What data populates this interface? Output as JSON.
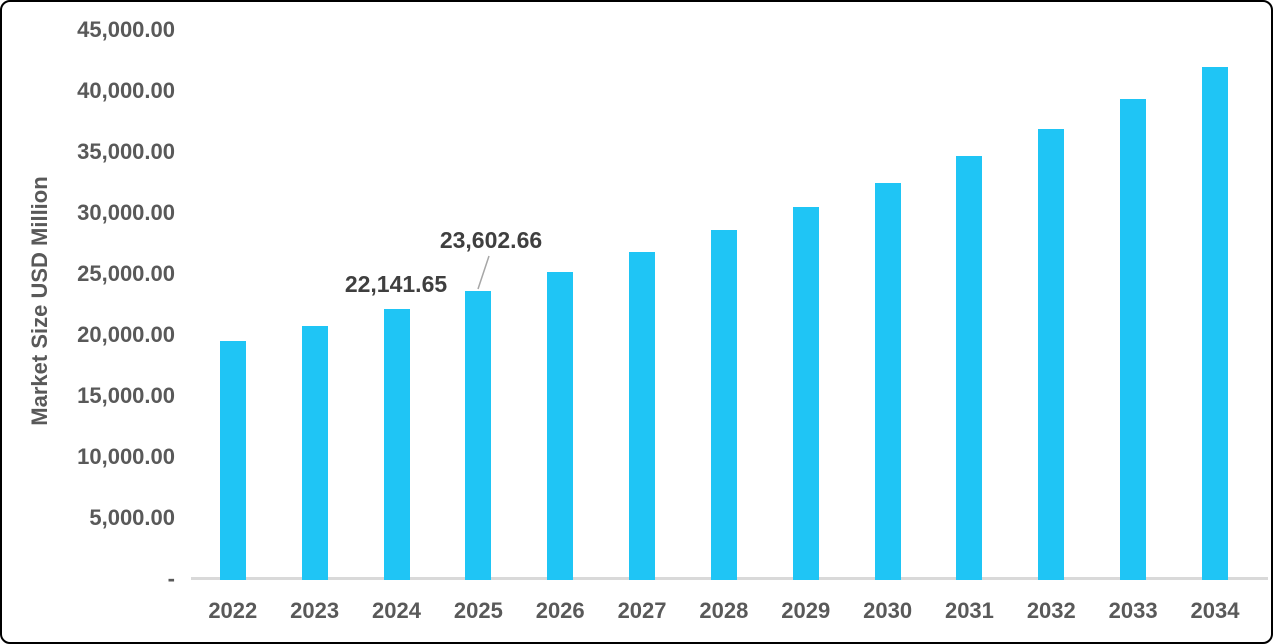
{
  "chart_data": {
    "type": "bar",
    "title": "",
    "xlabel": "",
    "ylabel": "Market Size USD Million",
    "categories": [
      "2022",
      "2023",
      "2024",
      "2025",
      "2026",
      "2027",
      "2028",
      "2029",
      "2030",
      "2031",
      "2032",
      "2033",
      "2034"
    ],
    "values": [
      19485,
      20771,
      22141.65,
      23602.66,
      25160,
      26821,
      28591,
      30478,
      32490,
      34634,
      36920,
      39357,
      41954
    ],
    "labeled_values": {
      "2024": "22,141.65",
      "2025": "23,602.66"
    },
    "annotations": [
      {
        "target_year": "2024",
        "text": "22,141.65",
        "has_leader_line": false
      },
      {
        "target_year": "2025",
        "text": "23,602.66",
        "has_leader_line": true
      }
    ],
    "ylim": [
      0,
      45000
    ],
    "ytick_step": 5000,
    "yticks": [
      {
        "value": 45000,
        "label": "45,000.00"
      },
      {
        "value": 40000,
        "label": "40,000.00"
      },
      {
        "value": 35000,
        "label": "35,000.00"
      },
      {
        "value": 30000,
        "label": "30,000.00"
      },
      {
        "value": 25000,
        "label": "25,000.00"
      },
      {
        "value": 20000,
        "label": "20,000.00"
      },
      {
        "value": 15000,
        "label": "15,000.00"
      },
      {
        "value": 10000,
        "label": "10,000.00"
      },
      {
        "value": 5000,
        "label": "5,000.00"
      },
      {
        "value": 0,
        "label": "-"
      }
    ],
    "gridlines": false,
    "legend_position": "none",
    "colors": {
      "bar": "#1fc5f5",
      "tick_text": "#595959",
      "data_label_text": "#3f3f3f",
      "axis_line": "#d9d9d9",
      "leader_line": "#a6a6a6",
      "frame_border": "#000000",
      "background": "#ffffff"
    }
  }
}
